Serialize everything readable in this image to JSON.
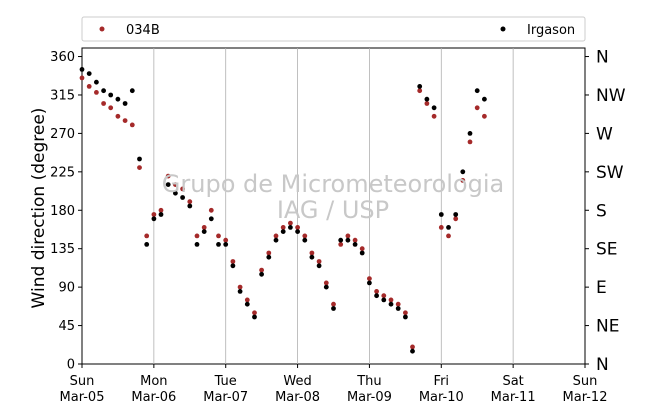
{
  "chart_data": {
    "type": "scatter",
    "xlabel": "",
    "ylabel": "Wind direction (degree)",
    "ylim": [
      0,
      370
    ],
    "xlim": [
      "2017-03-05",
      "2017-03-12"
    ],
    "yticks": [
      0,
      45,
      90,
      135,
      180,
      225,
      270,
      315,
      360
    ],
    "compass_labels": [
      {
        "value": 0,
        "label": "N"
      },
      {
        "value": 45,
        "label": "NE"
      },
      {
        "value": 90,
        "label": "E"
      },
      {
        "value": 135,
        "label": "SE"
      },
      {
        "value": 180,
        "label": "S"
      },
      {
        "value": 225,
        "label": "SW"
      },
      {
        "value": 270,
        "label": "W"
      },
      {
        "value": 315,
        "label": "NW"
      },
      {
        "value": 360,
        "label": "N"
      }
    ],
    "xticks": [
      {
        "day": "Sun",
        "date": "Mar-05"
      },
      {
        "day": "Mon",
        "date": "Mar-06"
      },
      {
        "day": "Tue",
        "date": "Mar-07"
      },
      {
        "day": "Wed",
        "date": "Mar-08"
      },
      {
        "day": "Thu",
        "date": "Mar-09"
      },
      {
        "day": "Fri",
        "date": "Mar-10"
      },
      {
        "day": "Sat",
        "date": "Mar-11"
      },
      {
        "day": "Sun",
        "date": "Mar-12"
      }
    ],
    "grid": "vertical",
    "legend_position": "top",
    "watermark": [
      "Grupo de Micrometeorologia",
      "IAG / USP"
    ],
    "series": [
      {
        "name": "034B",
        "color": "#a52a2a",
        "x": [
          0.0,
          0.1,
          0.2,
          0.3,
          0.4,
          0.5,
          0.6,
          0.7,
          0.8,
          0.9,
          1.0,
          1.1,
          1.2,
          1.3,
          1.4,
          1.5,
          1.6,
          1.7,
          1.8,
          1.9,
          2.0,
          2.1,
          2.2,
          2.3,
          2.4,
          2.5,
          2.6,
          2.7,
          2.8,
          2.9,
          3.0,
          3.1,
          3.2,
          3.3,
          3.4,
          3.5,
          3.6,
          3.7,
          3.8,
          3.9,
          4.0,
          4.1,
          4.2,
          4.3,
          4.4,
          4.5,
          4.6,
          4.7,
          4.8,
          4.9,
          5.0,
          5.1,
          5.2,
          5.3,
          5.4,
          5.5,
          5.6
        ],
        "y": [
          335,
          325,
          318,
          305,
          300,
          290,
          285,
          280,
          230,
          150,
          175,
          180,
          220,
          210,
          205,
          190,
          150,
          160,
          180,
          150,
          145,
          120,
          90,
          75,
          60,
          110,
          130,
          150,
          160,
          165,
          160,
          150,
          130,
          120,
          95,
          70,
          140,
          150,
          145,
          135,
          100,
          85,
          80,
          75,
          70,
          60,
          20,
          320,
          305,
          290,
          160,
          150,
          170,
          215,
          260,
          300,
          290
        ]
      },
      {
        "name": "Irgason",
        "color": "#000000",
        "x": [
          0.0,
          0.1,
          0.2,
          0.3,
          0.4,
          0.5,
          0.6,
          0.7,
          0.8,
          0.9,
          1.0,
          1.1,
          1.2,
          1.3,
          1.4,
          1.5,
          1.6,
          1.7,
          1.8,
          1.9,
          2.0,
          2.1,
          2.2,
          2.3,
          2.4,
          2.5,
          2.6,
          2.7,
          2.8,
          2.9,
          3.0,
          3.1,
          3.2,
          3.3,
          3.4,
          3.5,
          3.6,
          3.7,
          3.8,
          3.9,
          4.0,
          4.1,
          4.2,
          4.3,
          4.4,
          4.5,
          4.6,
          4.7,
          4.8,
          4.9,
          5.0,
          5.1,
          5.2,
          5.3,
          5.4,
          5.5,
          5.6
        ],
        "y": [
          345,
          340,
          330,
          320,
          315,
          310,
          305,
          320,
          240,
          140,
          170,
          175,
          210,
          200,
          195,
          185,
          140,
          155,
          170,
          140,
          140,
          115,
          85,
          70,
          55,
          105,
          125,
          145,
          155,
          160,
          155,
          145,
          125,
          115,
          90,
          65,
          145,
          145,
          140,
          130,
          95,
          80,
          75,
          70,
          65,
          55,
          15,
          325,
          310,
          300,
          175,
          160,
          175,
          225,
          270,
          320,
          310
        ]
      }
    ]
  }
}
